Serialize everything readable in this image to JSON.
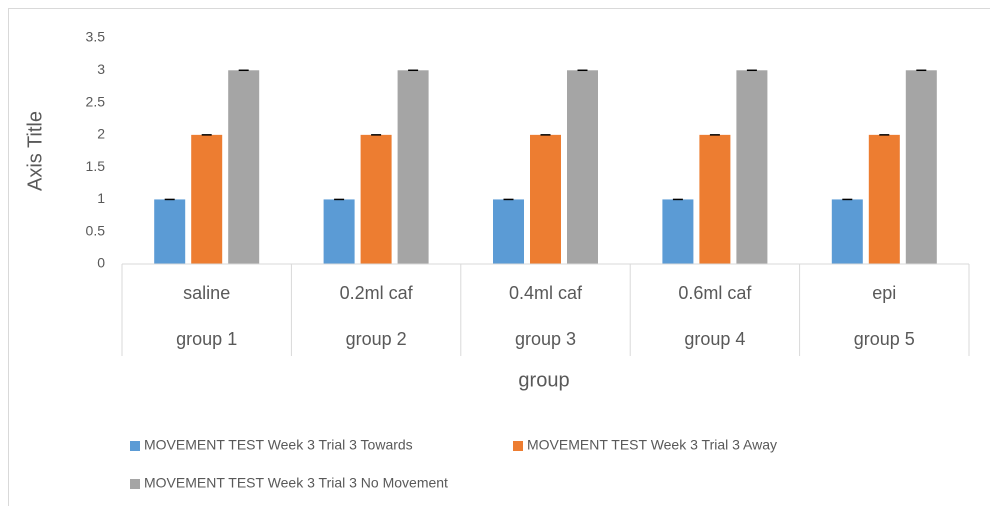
{
  "chart_data": {
    "type": "bar",
    "x_label": "group",
    "y_label": "Axis Title",
    "categories": [
      "saline",
      "0.2ml caf",
      "0.4ml caf",
      "0.6ml caf",
      "epi"
    ],
    "groups": [
      "group 1",
      "group 2",
      "group 3",
      "group 4",
      "group 5"
    ],
    "series": [
      {
        "name": "MOVEMENT TEST Week 3 Trial 3 Towards",
        "color": "#5b9bd5",
        "values": [
          1,
          1,
          1,
          1,
          1
        ],
        "errors": [
          0,
          0,
          0,
          0,
          0
        ]
      },
      {
        "name": "MOVEMENT TEST Week 3 Trial 3 Away",
        "color": "#ed7d31",
        "values": [
          2,
          2,
          2,
          2,
          2
        ],
        "errors": [
          0,
          0,
          0,
          0,
          0
        ]
      },
      {
        "name": "MOVEMENT TEST Week 3 Trial 3 No Movement",
        "color": "#a5a5a5",
        "values": [
          3,
          3,
          3,
          3,
          3
        ],
        "errors": [
          0,
          0,
          0,
          0,
          0
        ]
      }
    ],
    "ylim": [
      0,
      3.5
    ],
    "yticks": [
      0,
      0.5,
      1,
      1.5,
      2,
      2.5,
      3,
      3.5
    ],
    "grid": false,
    "legend": "bottom"
  }
}
